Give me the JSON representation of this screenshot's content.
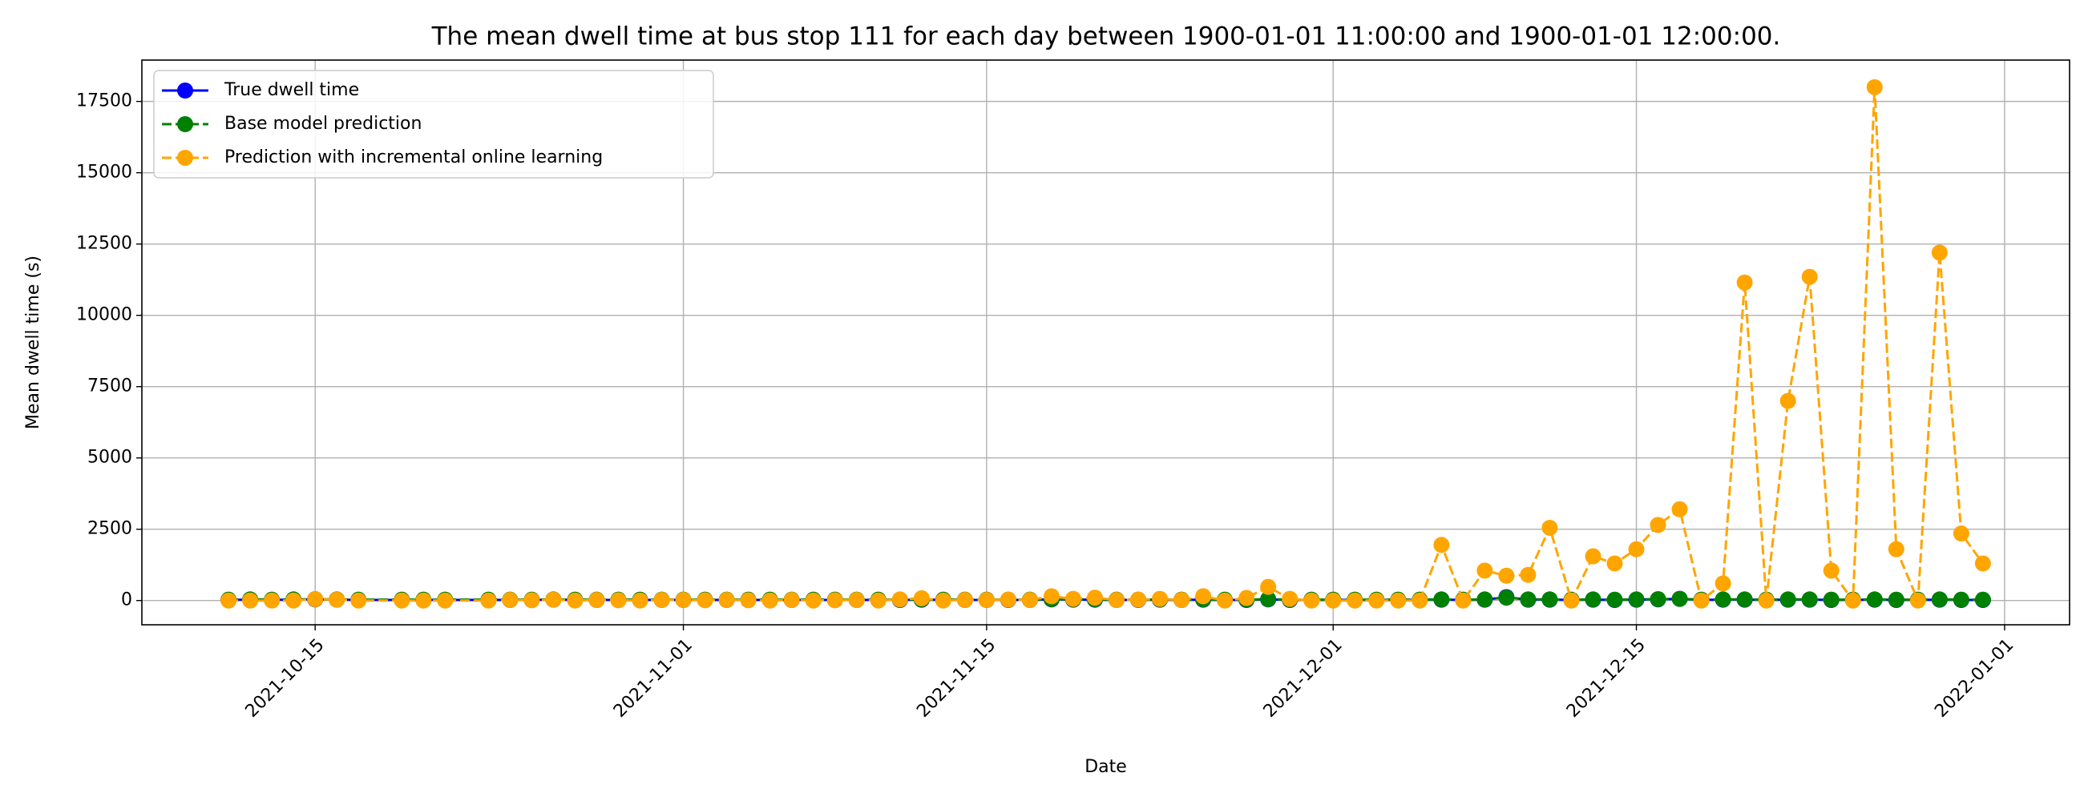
{
  "chart_data": {
    "type": "line",
    "title": "The mean dwell time at bus stop 111 for each day between 1900-01-01 11:00:00 and 1900-01-01 12:00:00.",
    "xlabel": "Date",
    "ylabel": "Mean dwell time (s)",
    "x": [
      "2021-10-11",
      "2021-10-12",
      "2021-10-13",
      "2021-10-14",
      "2021-10-15",
      "2021-10-16",
      "2021-10-17",
      "2021-10-19",
      "2021-10-20",
      "2021-10-21",
      "2021-10-23",
      "2021-10-24",
      "2021-10-25",
      "2021-10-26",
      "2021-10-27",
      "2021-10-28",
      "2021-10-29",
      "2021-10-30",
      "2021-10-31",
      "2021-11-01",
      "2021-11-02",
      "2021-11-03",
      "2021-11-04",
      "2021-11-05",
      "2021-11-06",
      "2021-11-07",
      "2021-11-08",
      "2021-11-09",
      "2021-11-10",
      "2021-11-11",
      "2021-11-12",
      "2021-11-13",
      "2021-11-14",
      "2021-11-15",
      "2021-11-16",
      "2021-11-17",
      "2021-11-18",
      "2021-11-19",
      "2021-11-20",
      "2021-11-21",
      "2021-11-22",
      "2021-11-23",
      "2021-11-24",
      "2021-11-25",
      "2021-11-26",
      "2021-11-27",
      "2021-11-28",
      "2021-11-29",
      "2021-11-30",
      "2021-12-01",
      "2021-12-02",
      "2021-12-03",
      "2021-12-04",
      "2021-12-05",
      "2021-12-06",
      "2021-12-07",
      "2021-12-08",
      "2021-12-09",
      "2021-12-10",
      "2021-12-11",
      "2021-12-12",
      "2021-12-13",
      "2021-12-14",
      "2021-12-15",
      "2021-12-16",
      "2021-12-17",
      "2021-12-18",
      "2021-12-19",
      "2021-12-20",
      "2021-12-21",
      "2021-12-22",
      "2021-12-23",
      "2021-12-24",
      "2021-12-25",
      "2021-12-26",
      "2021-12-27",
      "2021-12-28",
      "2021-12-29",
      "2021-12-30",
      "2021-12-31"
    ],
    "series": [
      {
        "name": "True dwell time",
        "color": "blue",
        "linestyle": "solid",
        "values": [
          20,
          30,
          20,
          30,
          40,
          30,
          20,
          20,
          20,
          20,
          20,
          20,
          20,
          30,
          20,
          20,
          20,
          20,
          20,
          20,
          20,
          20,
          20,
          20,
          20,
          20,
          20,
          20,
          20,
          20,
          30,
          20,
          20,
          20,
          20,
          20,
          40,
          30,
          30,
          20,
          20,
          30,
          20,
          30,
          20,
          20,
          40,
          20,
          20,
          20,
          20,
          20,
          20,
          20,
          30,
          20,
          30,
          120,
          30,
          30,
          20,
          30,
          20,
          30,
          40,
          60,
          20,
          30,
          30,
          20,
          30,
          30,
          20,
          20,
          30,
          20,
          20,
          30,
          20,
          20
        ]
      },
      {
        "name": "Base model prediction",
        "color": "green",
        "linestyle": "dashed",
        "values": [
          30,
          40,
          30,
          40,
          50,
          40,
          30,
          30,
          30,
          30,
          30,
          30,
          30,
          40,
          30,
          30,
          30,
          30,
          30,
          30,
          30,
          30,
          30,
          30,
          30,
          30,
          30,
          30,
          30,
          30,
          40,
          30,
          30,
          30,
          30,
          30,
          50,
          40,
          40,
          30,
          30,
          40,
          30,
          40,
          30,
          30,
          50,
          30,
          30,
          30,
          30,
          30,
          30,
          30,
          40,
          30,
          40,
          100,
          40,
          40,
          30,
          40,
          30,
          40,
          50,
          60,
          30,
          40,
          40,
          30,
          40,
          40,
          30,
          30,
          40,
          30,
          30,
          40,
          30,
          30
        ]
      },
      {
        "name": "Prediction with incremental online learning",
        "color": "orange",
        "linestyle": "dashed",
        "values": [
          0,
          0,
          0,
          0,
          50,
          30,
          0,
          0,
          0,
          0,
          0,
          20,
          10,
          30,
          0,
          20,
          10,
          0,
          20,
          20,
          10,
          20,
          10,
          0,
          20,
          0,
          10,
          20,
          0,
          40,
          80,
          0,
          20,
          20,
          30,
          20,
          150,
          60,
          100,
          20,
          30,
          60,
          20,
          150,
          0,
          90,
          480,
          60,
          0,
          0,
          0,
          0,
          0,
          0,
          1950,
          0,
          1050,
          870,
          900,
          2550,
          0,
          1550,
          1300,
          1800,
          2650,
          3200,
          0,
          600,
          11150,
          0,
          7000,
          11350,
          1050,
          0,
          18000,
          1800,
          0,
          12200,
          2350,
          1300
        ]
      }
    ],
    "xlim": [
      "2021-10-07",
      "2022-01-04"
    ],
    "xticks": [
      "2021-10-15",
      "2021-11-01",
      "2021-11-15",
      "2021-12-01",
      "2021-12-15",
      "2022-01-01"
    ],
    "ylim": [
      -850,
      18950
    ],
    "yticks": [
      0,
      2500,
      5000,
      7500,
      10000,
      12500,
      15000,
      17500
    ],
    "grid": true,
    "legend": "upper left"
  }
}
